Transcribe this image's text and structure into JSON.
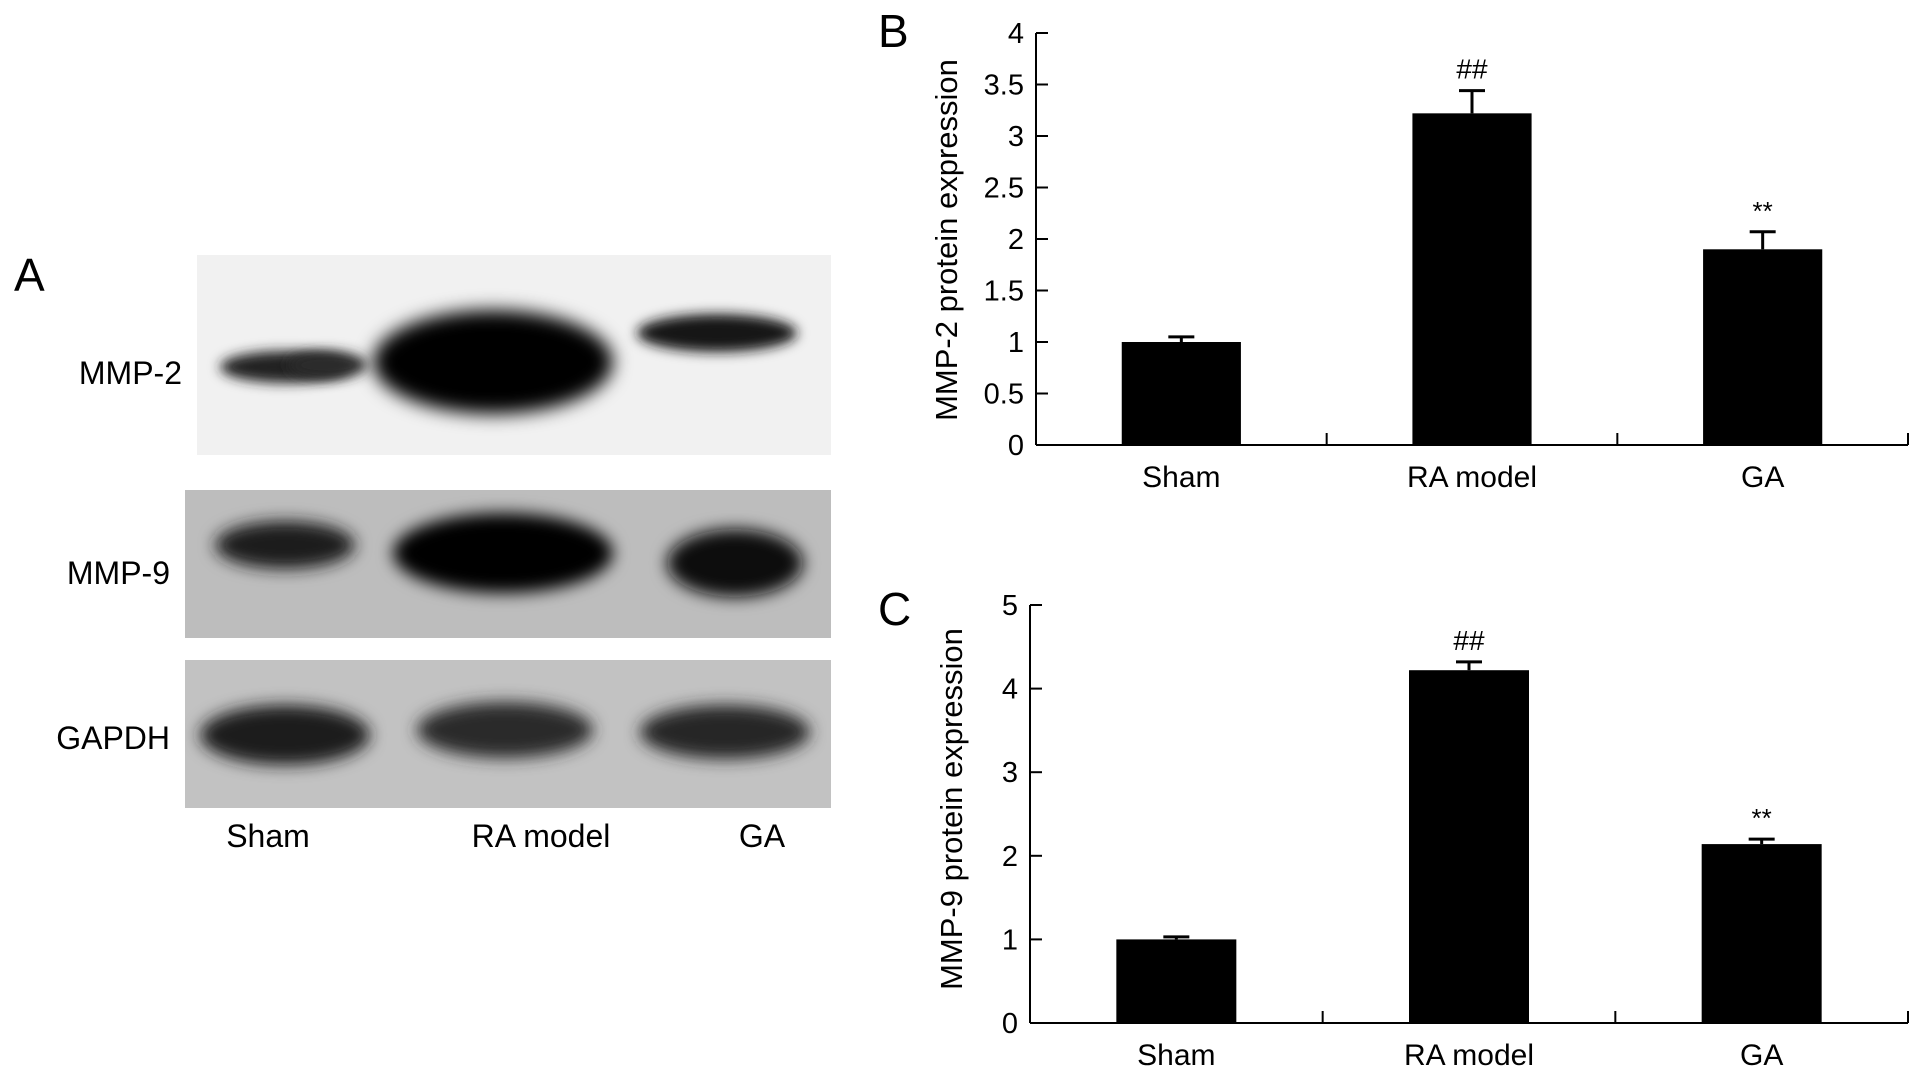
{
  "figure": {
    "panel_a": {
      "letter": "A",
      "bands": [
        {
          "label": "MMP-2"
        },
        {
          "label": "MMP-9"
        },
        {
          "label": "GAPDH"
        }
      ],
      "lanes": [
        "Sham",
        "RA model",
        "GA"
      ]
    },
    "panel_b": {
      "letter": "B"
    },
    "panel_c": {
      "letter": "C"
    }
  },
  "chart_data": [
    {
      "type": "bar",
      "title": "",
      "xlabel": "",
      "ylabel": "MMP-2 protein expression",
      "categories": [
        "Sham",
        "RA model",
        "GA"
      ],
      "values": [
        1.0,
        3.22,
        1.9
      ],
      "errors": [
        0.05,
        0.22,
        0.17
      ],
      "annotations": [
        "",
        "##",
        "**"
      ],
      "ylim": [
        0,
        4
      ],
      "yticks": [
        "0",
        "0.5",
        "1",
        "1.5",
        "2",
        "2.5",
        "3",
        "3.5",
        "4"
      ],
      "grid": false,
      "bar_color": "#000000"
    },
    {
      "type": "bar",
      "title": "",
      "xlabel": "",
      "ylabel": "MMP-9 protein expression",
      "categories": [
        "Sham",
        "RA model",
        "GA"
      ],
      "values": [
        1.0,
        4.22,
        2.14
      ],
      "errors": [
        0.03,
        0.1,
        0.06
      ],
      "annotations": [
        "",
        "##",
        "**"
      ],
      "ylim": [
        0,
        5
      ],
      "yticks": [
        "0",
        "1",
        "2",
        "3",
        "4",
        "5"
      ],
      "grid": false,
      "bar_color": "#000000"
    }
  ]
}
